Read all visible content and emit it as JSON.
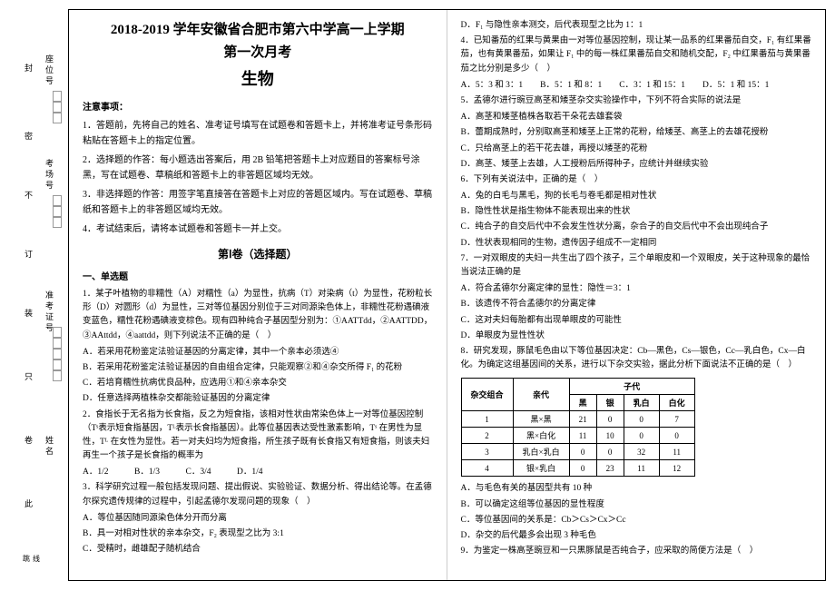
{
  "margin": {
    "vt_seal": "封",
    "vt_secret": "密",
    "vt_no": "不",
    "vt_order": "订",
    "vt_install": "装",
    "vt_only": "只",
    "vt_fold": "卷",
    "vt_this": "此",
    "vt_line": "跳线",
    "label_seat": "座位号",
    "label_room": "考场号",
    "label_id": "准考证号",
    "label_name": "姓名"
  },
  "header": {
    "title_line1": "2018-2019 学年安徽省合肥市第六中学高一上学期",
    "title_line2": "第一次月考",
    "subject": "生物"
  },
  "notice": {
    "header": "注意事项：",
    "items": [
      "1．答题前，先将自己的姓名、准考证号填写在试题卷和答题卡上，并将准考证号条形码粘贴在答题卡上的指定位置。",
      "2．选择题的作答：每小题选出答案后，用 2B 铅笔把答题卡上对应题目的答案标号涂黑，写在试题卷、草稿纸和答题卡上的非答题区域均无效。",
      "3．非选择题的作答：用签字笔直接答在答题卡上对应的答题区域内。写在试题卷、草稿纸和答题卡上的非答题区域均无效。",
      "4．考试结束后，请将本试题卷和答题卡一并上交。"
    ]
  },
  "section1_title": "第Ⅰ卷（选择题）",
  "part1_header": "一、单选题",
  "q1": {
    "text": "1．某子叶植物的非糯性（A）对糯性（a）为显性，抗病（T）对染病（t）为显性，花粉粒长形（D）对圆形（d）为显性，三对等位基因分别位于三对同源染色体上，非糯性花粉遇碘液变蓝色，糯性花粉遇碘液变棕色。现有四种纯合子基因型分别为：①AATTdd，②AATTDD，③AAttdd，④aattdd，则下列说法不正确的是（　）",
    "optA": "A．若采用花粉鉴定法验证基因的分离定律，其中一个亲本必须选④",
    "optB": "B．若采用花粉鉴定法验证基因的自由组合定律，只能观察②和④杂交所得 F₁ 的花粉",
    "optC": "C．若培育糯性抗病优良品种，应选用①和④亲本杂交",
    "optD": "D．任意选择两植株杂交都能验证基因的分离定律"
  },
  "q2": {
    "text": "2．食指长于无名指为长食指，反之为短食指，该相对性状由常染色体上一对等位基因控制（Tˢ表示短食指基因，Tᴸ表示长食指基因）。此等位基因表达受性激素影响，Tˢ 在男性为显性，Tᴸ 在女性为显性。若一对夫妇均为短食指，所生孩子既有长食指又有短食指，则该夫妇再生一个孩子是长食指的概率为",
    "options": "A．1/2　　　B．1/3　　　C．3/4　　　D．1/4"
  },
  "q3": {
    "text": "3．科学研究过程一般包括发现问题、提出假说、实验验证、数据分析、得出结论等。在孟德尔探究遗传规律的过程中，引起孟德尔发现问题的现象（　）",
    "optA": "A．等位基因随同源染色体分开而分离",
    "optB": "B．具一对相对性状的亲本杂交，F₂ 表现型之比为 3:1",
    "optC": "C．受精时，雌雄配子随机结合"
  },
  "right": {
    "q3d": "D．F₁ 与隐性亲本测交，后代表现型之比为 1：1",
    "q4": "4．已知番茄的红果与黄果由一对等位基因控制，现让某一品系的红果番茄自交，F₁ 有红果番茄，也有黄果番茄，如果让 F₁ 中的每一株红果番茄自交和随机交配，F₂ 中红果番茄与黄果番茄之比分别是多少（　）",
    "q4opts": "A．5：3 和 3：1　　B．5：1 和 8：1　　C．3：1 和 15：1　　D．5：1 和 15：1",
    "q5": "5．孟德尔进行豌豆高茎和矮茎杂交实验操作中，下列不符合实际的说法是",
    "q5a": "A．高茎和矮茎植株各取若干朵花去雄套袋",
    "q5b": "B．蕾期成熟时，分别取高茎和矮茎上正常的花粉，给矮茎、高茎上的去雄花授粉",
    "q5c": "C．只给高茎上的若干花去雄，再授以矮茎的花粉",
    "q5d": "D．高茎、矮茎上去雄，人工授粉后所得种子，应统计并继续实验",
    "q6": "6．下列有关说法中，正确的是（　）",
    "q6a": "A．兔的白毛与黑毛，狗的长毛与卷毛都是相对性状",
    "q6b": "B．隐性性状是指生物体不能表现出来的性状",
    "q6c": "C．纯合子的自交后代中不会发生性状分离，杂合子的自交后代中不会出现纯合子",
    "q6d": "D．性状表现相同的生物，遗传因子组成不一定相同",
    "q7": "7．一对双眼皮的夫妇一共生出了四个孩子，三个单眼皮和一个双眼皮，关于这种现象的最恰当说法正确的是",
    "q7a": "A．符合孟德尔分离定律的显性：隐性＝3：1",
    "q7b": "B．该遗传不符合孟德尔的分离定律",
    "q7c": "C．这对夫妇每胎都有出现单眼皮的可能性",
    "q7d": "D．单眼皮为显性性状",
    "q8": "8．研究发现，豚鼠毛色由以下等位基因决定：Cb—黑色，Cs—银色，Cc—乳白色，Cx—白化。为确定这组基因间的关系，进行以下杂交实验，据此分析下面说法不正确的是（　）",
    "q8a": "A．与毛色有关的基因型共有 10 种",
    "q8b": "B．可以确定这组等位基因的显性程度",
    "q8c": "C．等位基因间的关系是：Cb＞Cs＞Cx＞Cc",
    "q8d": "D．杂交的后代最多会出现 3 种毛色",
    "q9": "9．为鉴定一株高茎豌豆和一只黑豚鼠是否纯合子，应采取的简便方法是（　）"
  },
  "table": {
    "h1": "杂交组合",
    "h2": "亲代",
    "h3": "子代",
    "c1": "黑",
    "c2": "银",
    "c3": "乳白",
    "c4": "白化",
    "rows": [
      {
        "n": "1",
        "p": "黑×黑",
        "v1": "21",
        "v2": "0",
        "v3": "0",
        "v4": "7"
      },
      {
        "n": "2",
        "p": "黑×白化",
        "v1": "11",
        "v2": "10",
        "v3": "0",
        "v4": "0"
      },
      {
        "n": "3",
        "p": "乳白×乳白",
        "v1": "0",
        "v2": "0",
        "v3": "32",
        "v4": "11"
      },
      {
        "n": "4",
        "p": "银×乳白",
        "v1": "0",
        "v2": "23",
        "v3": "11",
        "v4": "12"
      }
    ]
  }
}
